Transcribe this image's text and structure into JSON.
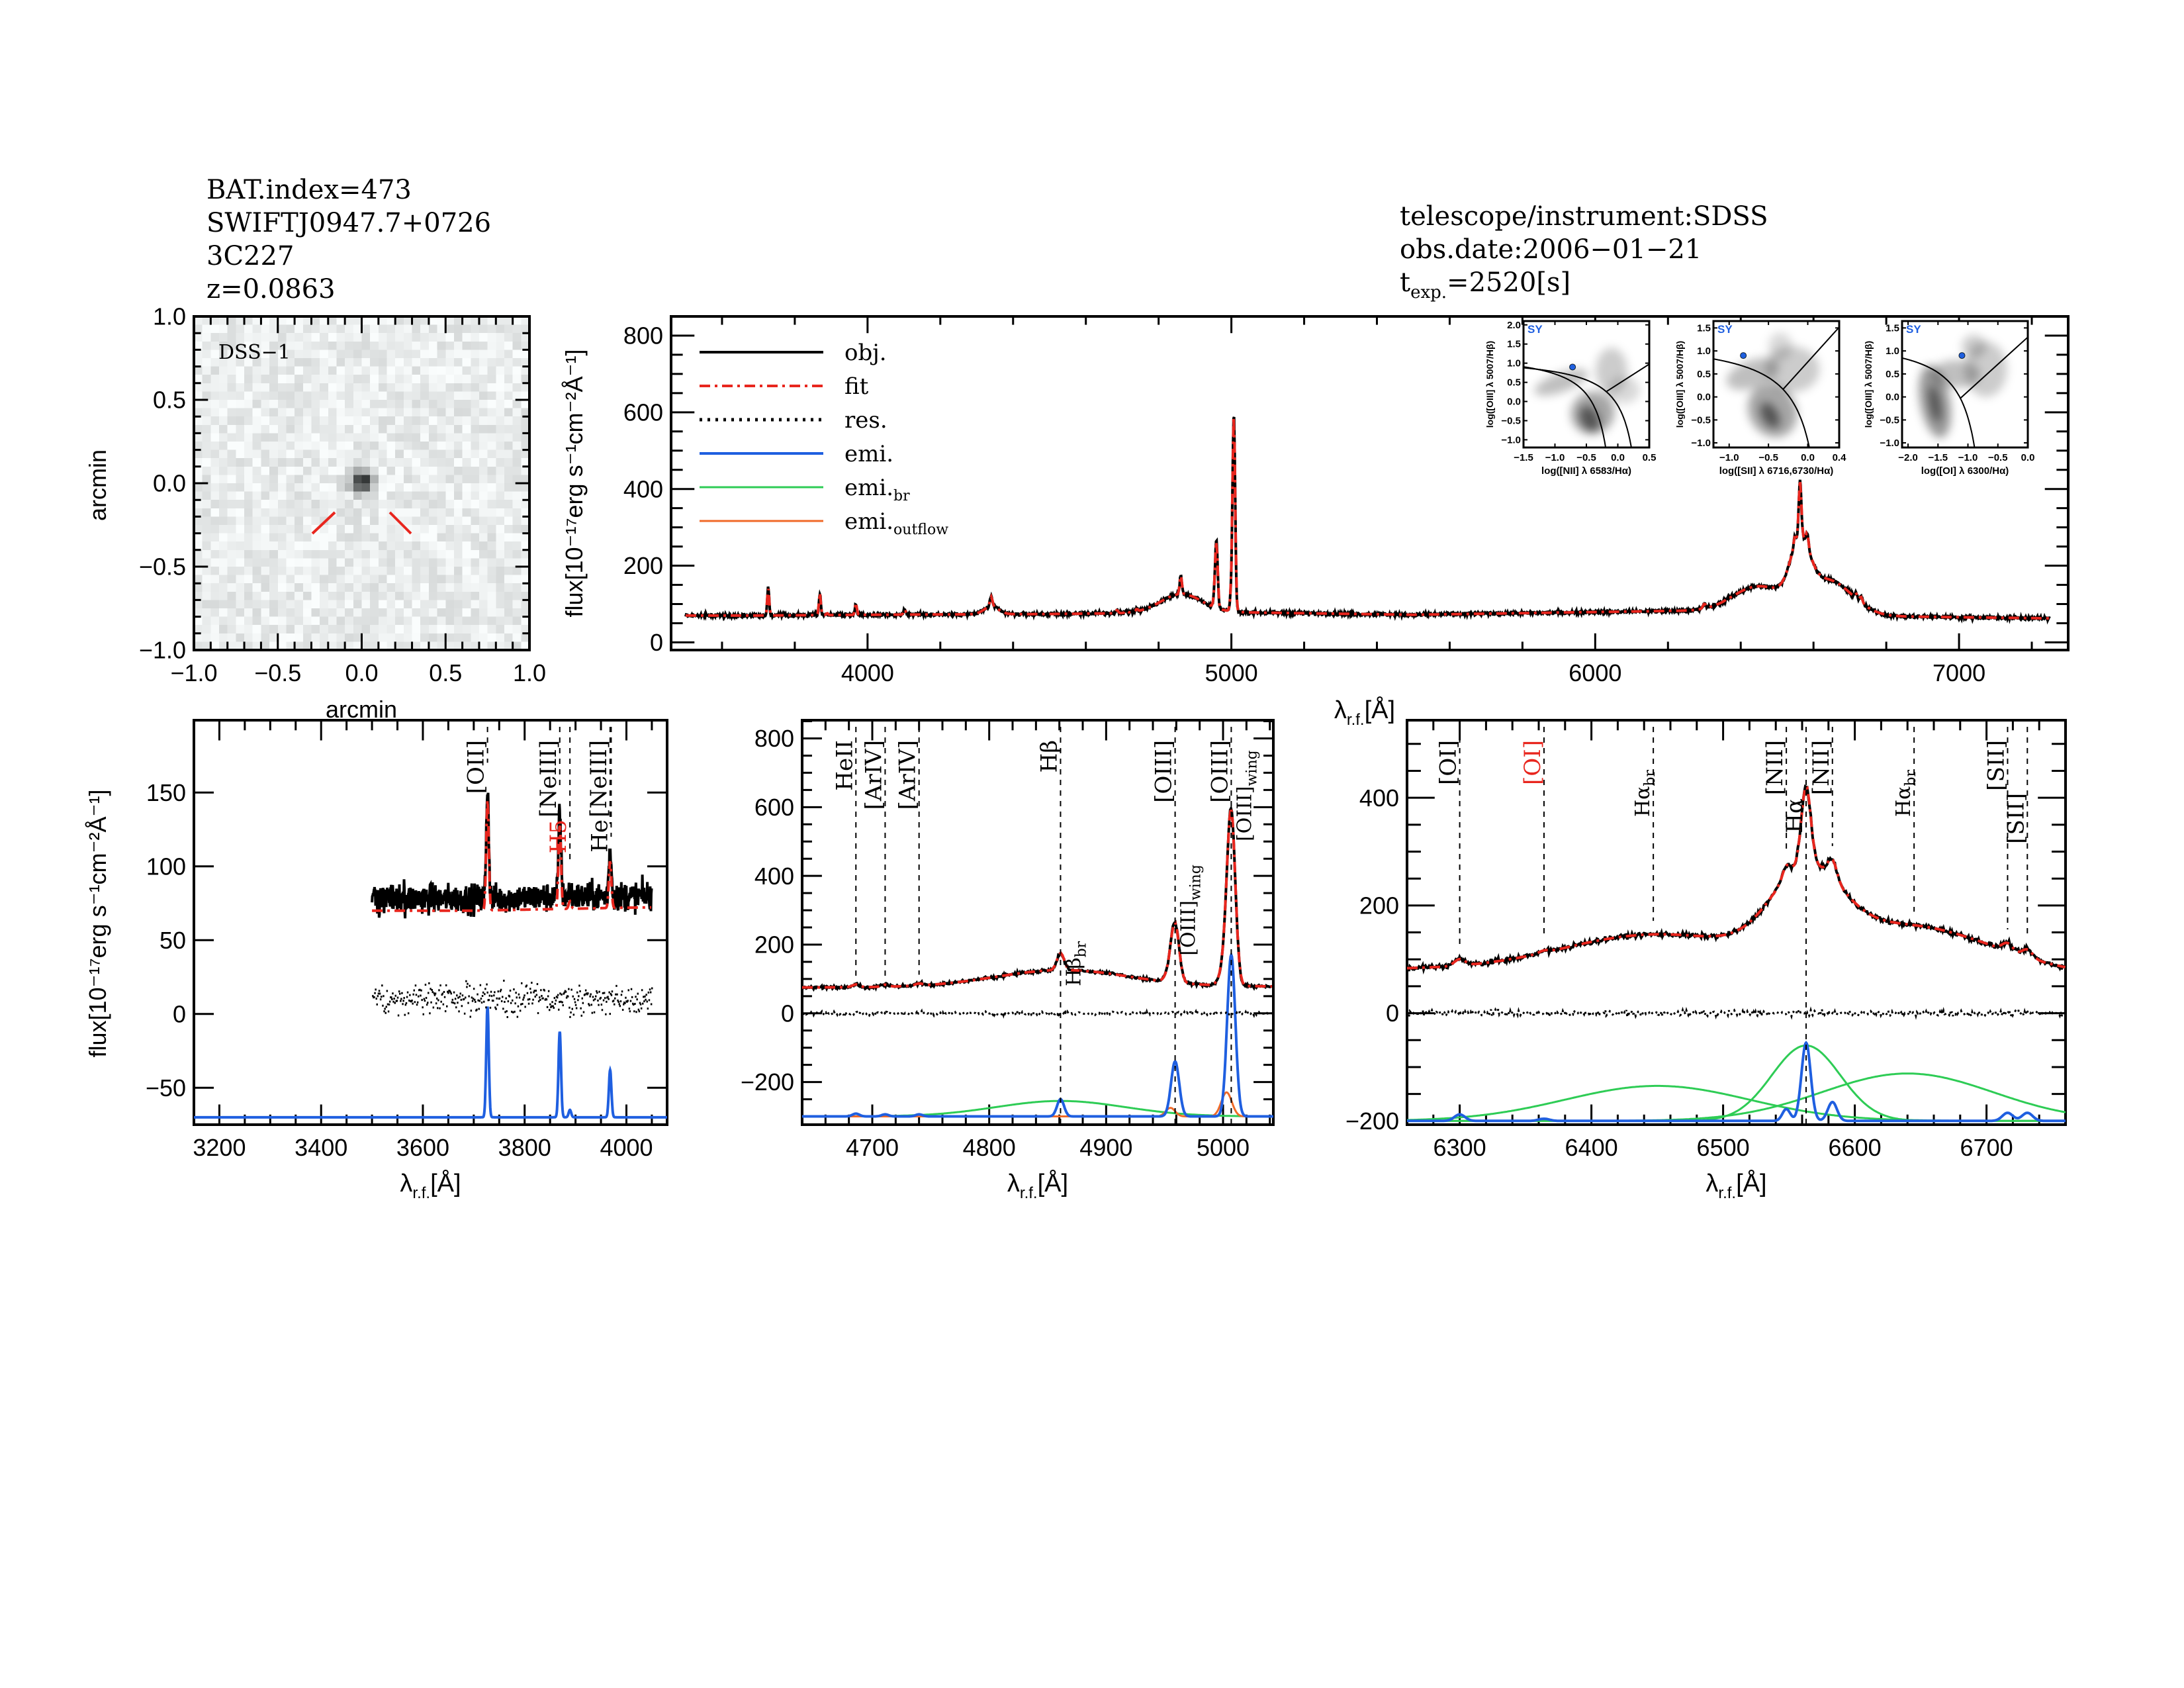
{
  "header_left": [
    "BAT.index=473",
    "SWIFTJ0947.7+0726",
    "3C227",
    "z=0.0863"
  ],
  "header_right": {
    "instrument": "telescope/instrument:SDSS",
    "obs_date": "obs.date:2006−01−21",
    "texp_main": "t",
    "texp_sub": "exp.",
    "texp_value": "=2520[s]"
  },
  "colors": {
    "obj": "#000000",
    "fit": "#e8261e",
    "res": "#000000",
    "emi": "#1f5fe0",
    "emi_br": "#2ecc55",
    "emi_outflow": "#f06a28",
    "label_red": "#e8261e",
    "sy": "#1f5fe0"
  },
  "image_panel": {
    "label": "DSS−1",
    "xlabel": "arcmin",
    "ylabel": "arcmin",
    "range": [
      -1.0,
      1.0
    ],
    "ticks": [
      "−1.0",
      "−0.5",
      "0.0",
      "0.5",
      "1.0"
    ],
    "tick_values": [
      -1.0,
      -0.5,
      0.0,
      0.5,
      1.0
    ]
  },
  "flux_label": "flux[10⁻¹⁷erg s⁻¹cm⁻²Å⁻¹]",
  "wave_label": {
    "main": "λ",
    "sub": "r.f.",
    "tail": "[Å]"
  },
  "legend": [
    {
      "key": "obj",
      "label": "obj.",
      "sub": "",
      "style": "solid"
    },
    {
      "key": "fit",
      "label": "fit",
      "sub": "",
      "style": "dash-dot"
    },
    {
      "key": "res",
      "label": "res.",
      "sub": "",
      "style": "dotted"
    },
    {
      "key": "emi",
      "label": "emi.",
      "sub": "",
      "style": "solid"
    },
    {
      "key": "emi_br",
      "label": "emi.",
      "sub": "br",
      "style": "solid"
    },
    {
      "key": "emi_outflow",
      "label": "emi.",
      "sub": "outflow",
      "style": "solid"
    }
  ],
  "chart_data": [
    {
      "id": "full-spectrum",
      "type": "line",
      "xrange": [
        3460,
        7300
      ],
      "yrange": [
        -20,
        850
      ],
      "data_range": [
        3500,
        7250
      ],
      "xticks": [
        4000,
        5000,
        6000,
        7000
      ],
      "yticks": [
        0,
        200,
        400,
        600,
        800
      ],
      "series": [
        "obj",
        "fit"
      ]
    },
    {
      "id": "oii-region",
      "type": "line",
      "xrange": [
        3150,
        4080
      ],
      "yrange": [
        -75,
        199
      ],
      "data_range": [
        3500,
        4050
      ],
      "xticks": [
        3200,
        3400,
        3600,
        3800,
        4000
      ],
      "yticks": [
        -50,
        0,
        50,
        100,
        150
      ],
      "emission_offset": -70,
      "residual_offset": 10,
      "series": [
        "obj",
        "fit",
        "res",
        "emi"
      ],
      "line_labels": [
        {
          "wave": 3727,
          "text": "[OII]",
          "sub": "",
          "red": false
        },
        {
          "wave": 3869,
          "text": "[NeIII]",
          "sub": "",
          "red": false
        },
        {
          "wave": 3889,
          "text": "H5",
          "sub": "",
          "red": true
        },
        {
          "wave": 3968,
          "text": "[NeIII]",
          "sub": "",
          "red": false
        },
        {
          "wave": 3970,
          "text": "He",
          "sub": "",
          "red": false
        }
      ]
    },
    {
      "id": "hbeta-region",
      "type": "line",
      "xrange": [
        4640,
        5043
      ],
      "yrange": [
        -324,
        853
      ],
      "data_range": [
        4640,
        5043
      ],
      "xticks": [
        4700,
        4800,
        4900,
        5000
      ],
      "yticks": [
        -200,
        0,
        200,
        400,
        600,
        800
      ],
      "emission_offset": -300,
      "residual_offset": 0,
      "series": [
        "obj",
        "fit",
        "res",
        "emi",
        "emi_br",
        "emi_outflow"
      ],
      "line_labels": [
        {
          "wave": 4686,
          "text": "HeII",
          "sub": "",
          "red": false
        },
        {
          "wave": 4711,
          "text": "[ArIV]",
          "sub": "",
          "red": false
        },
        {
          "wave": 4740,
          "text": "[ArIV]",
          "sub": "",
          "red": false
        },
        {
          "wave": 4861,
          "text": "Hβ",
          "sub": "",
          "red": false
        },
        {
          "wave": 4861,
          "text": "Hβ",
          "sub": "br",
          "red": false
        },
        {
          "wave": 4959,
          "text": "[OIII]",
          "sub": "",
          "red": false
        },
        {
          "wave": 4959,
          "text": "[OIII]",
          "sub": "wing",
          "red": false
        },
        {
          "wave": 5007,
          "text": "[OIII]",
          "sub": "",
          "red": false
        },
        {
          "wave": 5007,
          "text": "[OIII]",
          "sub": "wing",
          "red": false
        }
      ]
    },
    {
      "id": "halpha-region",
      "type": "line",
      "xrange": [
        6260,
        6760
      ],
      "yrange": [
        -207,
        544
      ],
      "data_range": [
        6260,
        6760
      ],
      "xticks": [
        6300,
        6400,
        6500,
        6600,
        6700
      ],
      "yticks": [
        -200,
        0,
        200,
        400
      ],
      "emission_offset": -200,
      "residual_offset": 0,
      "series": [
        "obj",
        "fit",
        "res",
        "emi",
        "emi_br"
      ],
      "line_labels": [
        {
          "wave": 6300,
          "text": "[OI]",
          "sub": "",
          "red": false
        },
        {
          "wave": 6364,
          "text": "[OI]",
          "sub": "",
          "red": true
        },
        {
          "wave": 6447,
          "text": "Hα",
          "sub": "br",
          "red": false
        },
        {
          "wave": 6548,
          "text": "[NII]",
          "sub": "",
          "red": false
        },
        {
          "wave": 6563,
          "text": "Hα",
          "sub": "",
          "red": false
        },
        {
          "wave": 6583,
          "text": "[NII]",
          "sub": "",
          "red": false
        },
        {
          "wave": 6645,
          "text": "Hα",
          "sub": "br",
          "red": false
        },
        {
          "wave": 6716,
          "text": "[SII]",
          "sub": "",
          "red": false
        },
        {
          "wave": 6731,
          "text": "[SII]",
          "sub": "",
          "red": false
        }
      ]
    }
  ],
  "model": {
    "continuum": [
      [
        3450,
        70
      ],
      [
        3700,
        70
      ],
      [
        4000,
        72
      ],
      [
        4500,
        74
      ],
      [
        4700,
        76
      ],
      [
        4900,
        82
      ],
      [
        5050,
        78
      ],
      [
        5500,
        72
      ],
      [
        6200,
        82
      ],
      [
        6400,
        82
      ],
      [
        6800,
        68
      ],
      [
        7300,
        62
      ]
    ],
    "narrow": [
      [
        3727,
        2.5,
        75
      ],
      [
        3869,
        2.5,
        58
      ],
      [
        3889,
        2.5,
        5
      ],
      [
        3968,
        2.5,
        32
      ],
      [
        4102,
        3,
        14
      ],
      [
        4340,
        3.5,
        25
      ],
      [
        4686,
        3,
        8
      ],
      [
        4711,
        3,
        6
      ],
      [
        4740,
        3,
        6
      ],
      [
        4861,
        3,
        50
      ],
      [
        4959,
        3.5,
        160
      ],
      [
        5007,
        3.5,
        470
      ],
      [
        6300,
        4,
        12
      ],
      [
        6364,
        4,
        4
      ],
      [
        6548,
        3,
        22
      ],
      [
        6563,
        3.5,
        145
      ],
      [
        6583,
        3.5,
        35
      ],
      [
        6716,
        4,
        15
      ],
      [
        6731,
        4,
        15
      ]
    ],
    "broad": [
      [
        4340,
        20,
        20
      ],
      [
        4861,
        55,
        45
      ],
      [
        6450,
        70,
        65
      ],
      [
        6563,
        26,
        140
      ],
      [
        6640,
        65,
        88
      ]
    ],
    "outflow": [
      [
        4955,
        4,
        25
      ],
      [
        5003,
        4.5,
        70
      ]
    ]
  },
  "bpt": [
    {
      "xlabel": "log([NII] λ 6583/Hα)",
      "ylabel": "log([OIII] λ 5007/Hβ)",
      "class": "SY",
      "xrange": [
        -1.5,
        0.5
      ],
      "yrange": [
        -1.2,
        2.1
      ],
      "xticks": [
        "−1.5",
        "−1.0",
        "−0.5",
        "0.0",
        "0.5"
      ],
      "xtick_values": [
        -1.5,
        -1.0,
        -0.5,
        0.0,
        0.5
      ],
      "yticks": [
        "−1.0",
        "−0.5",
        "0.0",
        "0.5",
        "1.0",
        "1.5",
        "2.0"
      ],
      "ytick_values": [
        -1.0,
        -0.5,
        0.0,
        0.5,
        1.0,
        1.5,
        2.0
      ],
      "point": [
        -0.72,
        0.9
      ]
    },
    {
      "xlabel": "log([SII] λ 6716,6730/Hα)",
      "ylabel": "log([OIII] λ 5007/Hβ)",
      "class": "SY",
      "xrange": [
        -1.2,
        0.4
      ],
      "yrange": [
        -1.1,
        1.65
      ],
      "xticks": [
        "−1.0",
        "−0.5",
        "0.0",
        "0.4"
      ],
      "xtick_values": [
        -1.0,
        -0.5,
        0.0,
        0.4
      ],
      "yticks": [
        "−1.0",
        "−0.5",
        "0.0",
        "0.5",
        "1.0",
        "1.5"
      ],
      "ytick_values": [
        -1.0,
        -0.5,
        0.0,
        0.5,
        1.0,
        1.5
      ],
      "point": [
        -0.82,
        0.9
      ]
    },
    {
      "xlabel": "log([OI] λ 6300/Hα)",
      "ylabel": "log([OIII] λ 5007/Hβ)",
      "class": "SY",
      "xrange": [
        -2.1,
        0.0
      ],
      "yrange": [
        -1.1,
        1.65
      ],
      "xticks": [
        "−2.0",
        "−1.5",
        "−1.0",
        "−0.5",
        "0.0"
      ],
      "xtick_values": [
        -2.0,
        -1.5,
        -1.0,
        -0.5,
        0.0
      ],
      "yticks": [
        "−1.0",
        "−0.5",
        "0.0",
        "0.5",
        "1.0",
        "1.5"
      ],
      "ytick_values": [
        -1.0,
        -0.5,
        0.0,
        0.5,
        1.0,
        1.5
      ],
      "point": [
        -1.1,
        0.9
      ]
    }
  ]
}
